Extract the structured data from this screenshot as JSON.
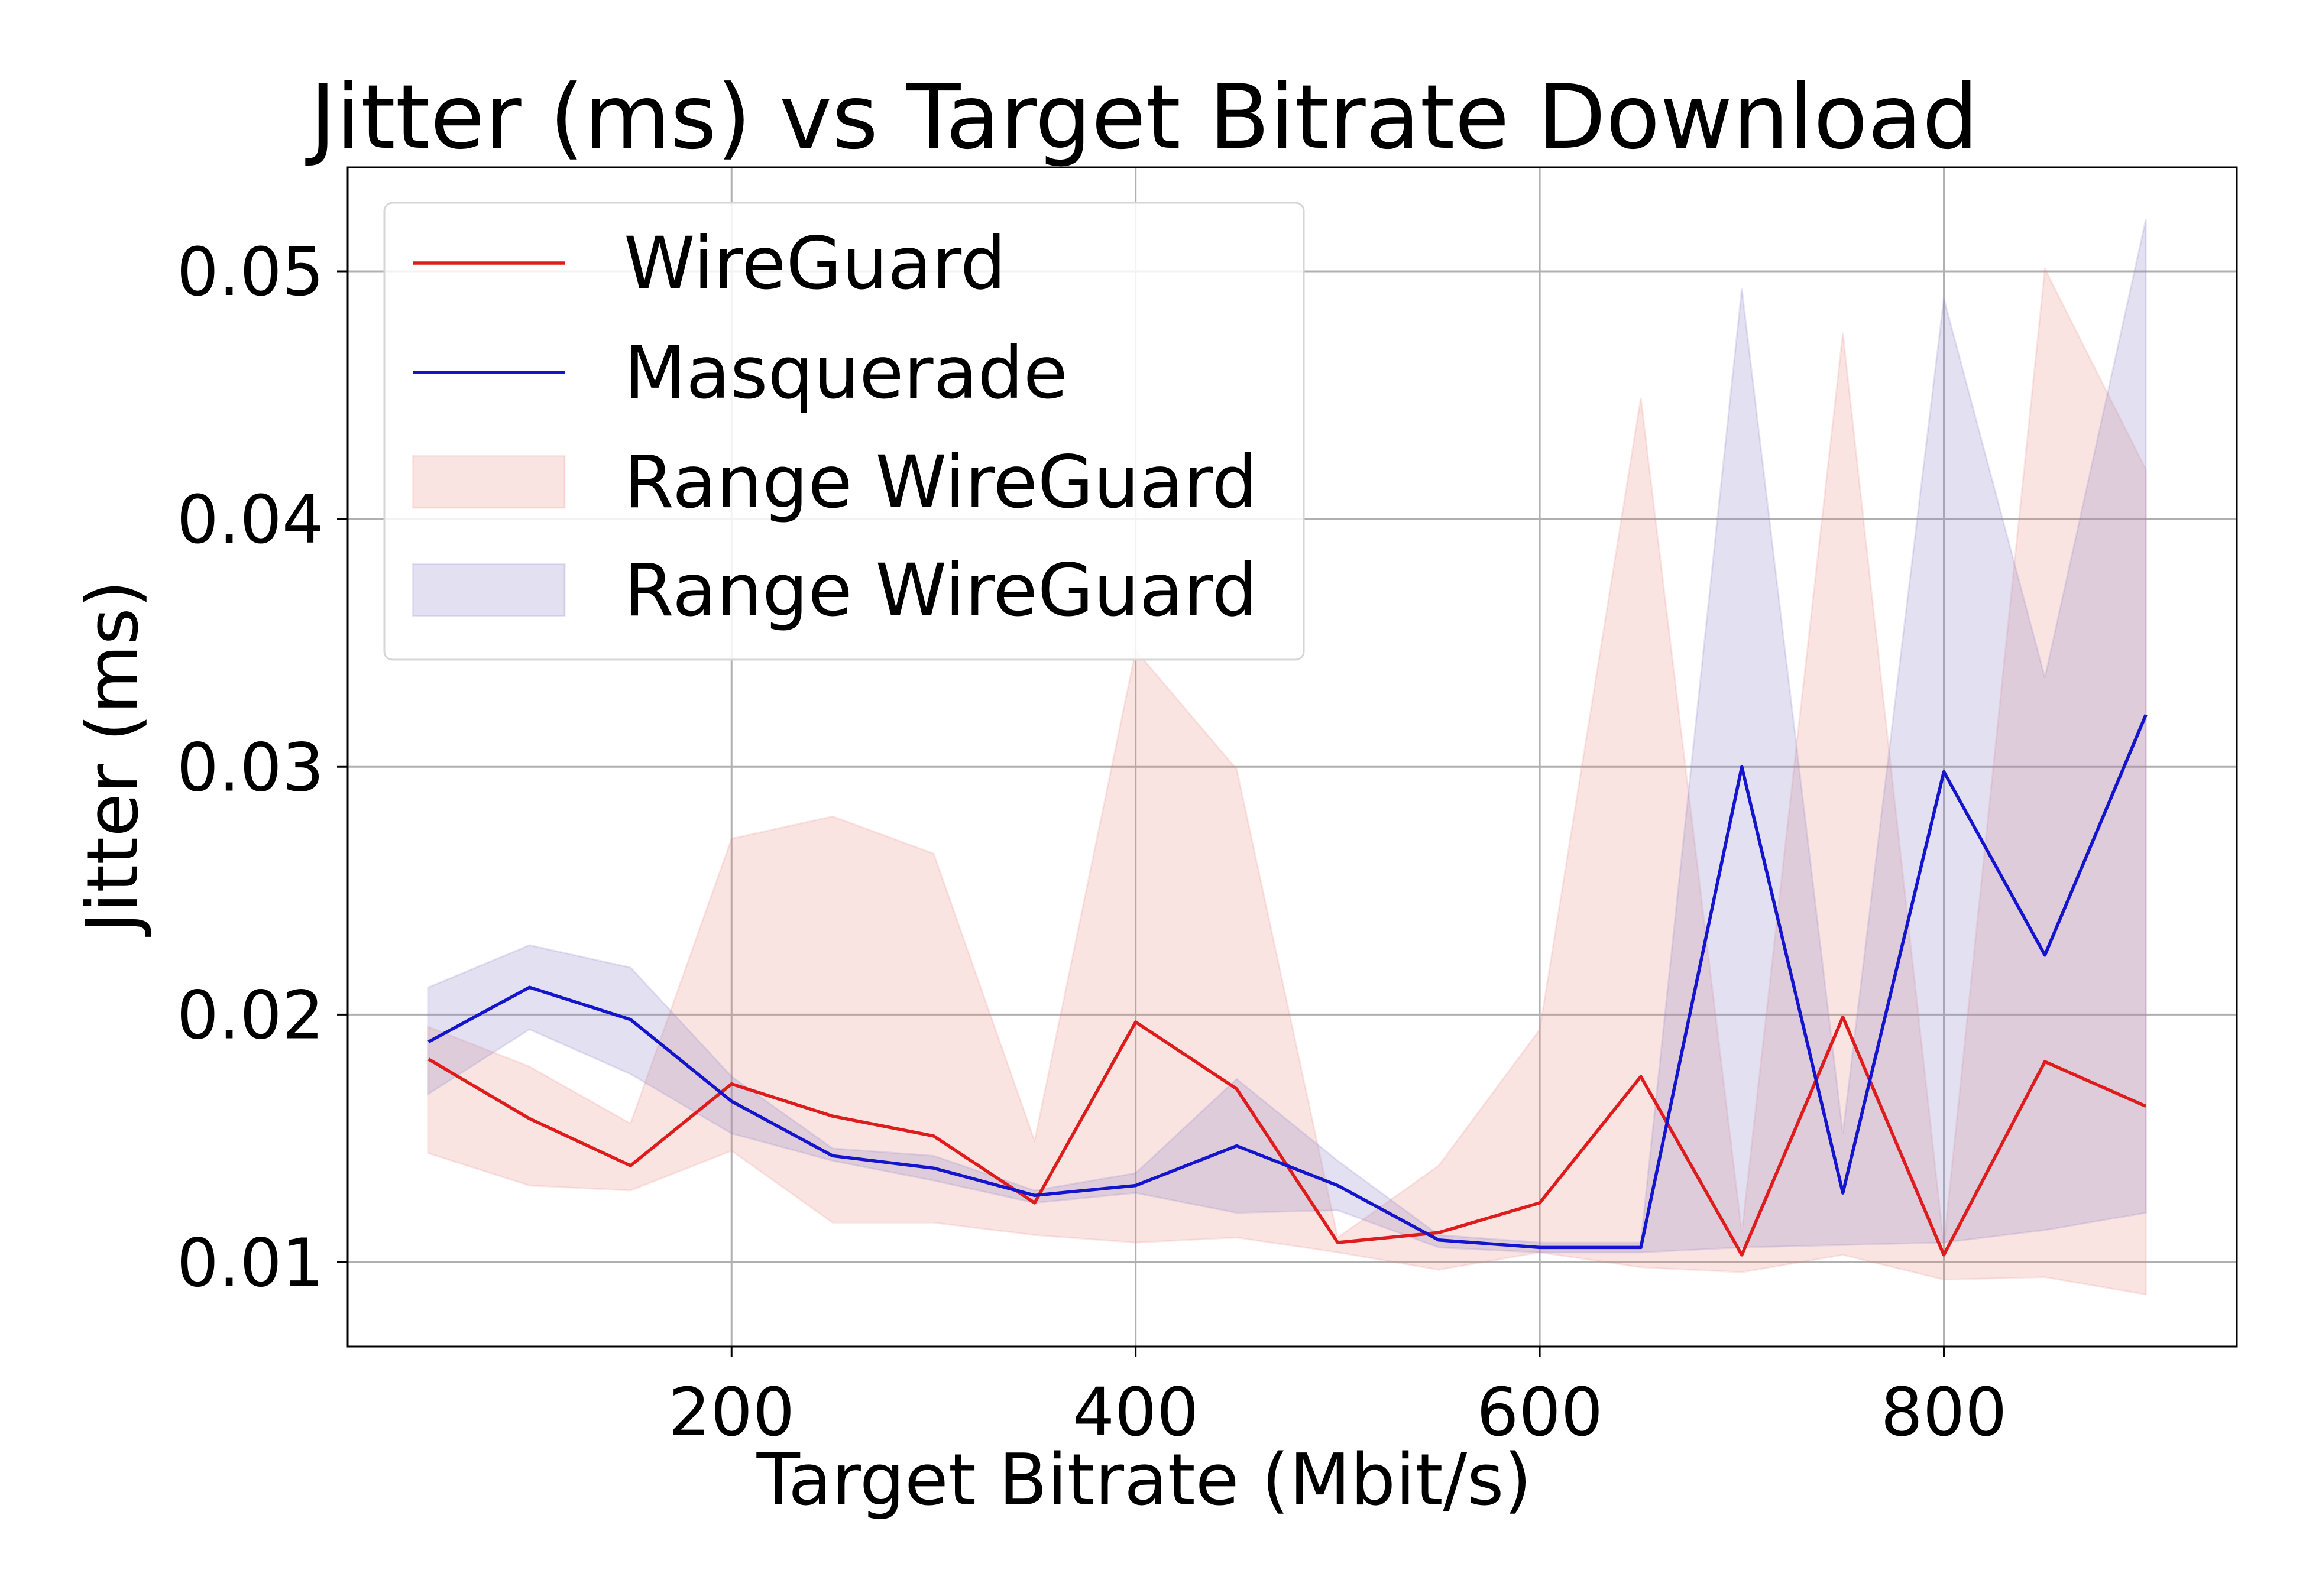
{
  "chart_data": {
    "type": "line",
    "title": "Jitter (ms) vs Target Bitrate Download",
    "xlabel": "Target Bitrate (Mbit/s)",
    "ylabel": "Jitter (ms)",
    "xlim": [
      10,
      945
    ],
    "ylim": [
      0.0066,
      0.0542
    ],
    "x_ticks": [
      200,
      400,
      600,
      800
    ],
    "x_tick_labels": [
      "200",
      "400",
      "600",
      "800"
    ],
    "y_ticks": [
      0.01,
      0.02,
      0.03,
      0.04,
      0.05
    ],
    "y_tick_labels": [
      "0.01",
      "0.02",
      "0.03",
      "0.04",
      "0.05"
    ],
    "grid": true,
    "legend_position": "top-left",
    "x": [
      50,
      100,
      150,
      200,
      250,
      300,
      350,
      400,
      450,
      500,
      550,
      600,
      650,
      700,
      750,
      800,
      850,
      900
    ],
    "series": [
      {
        "name": "WireGuard",
        "kind": "line",
        "color": "#dd1c1c",
        "values": [
          0.0182,
          0.0158,
          0.0139,
          0.0172,
          0.0159,
          0.0151,
          0.0124,
          0.0197,
          0.017,
          0.0108,
          0.0112,
          0.0124,
          0.0175,
          0.0103,
          0.0199,
          0.0103,
          0.0181,
          0.0163
        ]
      },
      {
        "name": "Masquerade",
        "kind": "line",
        "color": "#1414cc",
        "values": [
          0.0189,
          0.0211,
          0.0198,
          0.0165,
          0.0143,
          0.0138,
          0.0127,
          0.0131,
          0.0147,
          0.0131,
          0.0109,
          0.0106,
          0.0106,
          0.03,
          0.0128,
          0.0298,
          0.0224,
          0.0321
        ]
      },
      {
        "name": "Range WireGuard",
        "kind": "band",
        "color": "#e8837a",
        "opacity": 0.22,
        "lower": [
          0.0144,
          0.0131,
          0.0129,
          0.0145,
          0.0116,
          0.0116,
          0.0111,
          0.0108,
          0.011,
          0.0104,
          0.0097,
          0.0104,
          0.0098,
          0.0096,
          0.0103,
          0.0093,
          0.0094,
          0.0087
        ],
        "upper": [
          0.0195,
          0.0179,
          0.0156,
          0.0271,
          0.028,
          0.0265,
          0.0149,
          0.0347,
          0.0299,
          0.011,
          0.0139,
          0.0194,
          0.0449,
          0.0112,
          0.0475,
          0.0107,
          0.0501,
          0.042
        ]
      },
      {
        "name": "Range WireGuard",
        "kind": "band",
        "color": "#8b83c6",
        "opacity": 0.25,
        "lower": [
          0.0168,
          0.0194,
          0.0176,
          0.0152,
          0.0141,
          0.0133,
          0.0124,
          0.0128,
          0.012,
          0.0121,
          0.0106,
          0.0104,
          0.0104,
          0.0106,
          0.0107,
          0.0108,
          0.0113,
          0.012
        ],
        "upper": [
          0.0211,
          0.0228,
          0.0219,
          0.0175,
          0.0146,
          0.0143,
          0.0129,
          0.0136,
          0.0174,
          0.0141,
          0.0111,
          0.0108,
          0.0108,
          0.0493,
          0.0152,
          0.0489,
          0.0336,
          0.0521
        ]
      }
    ]
  }
}
